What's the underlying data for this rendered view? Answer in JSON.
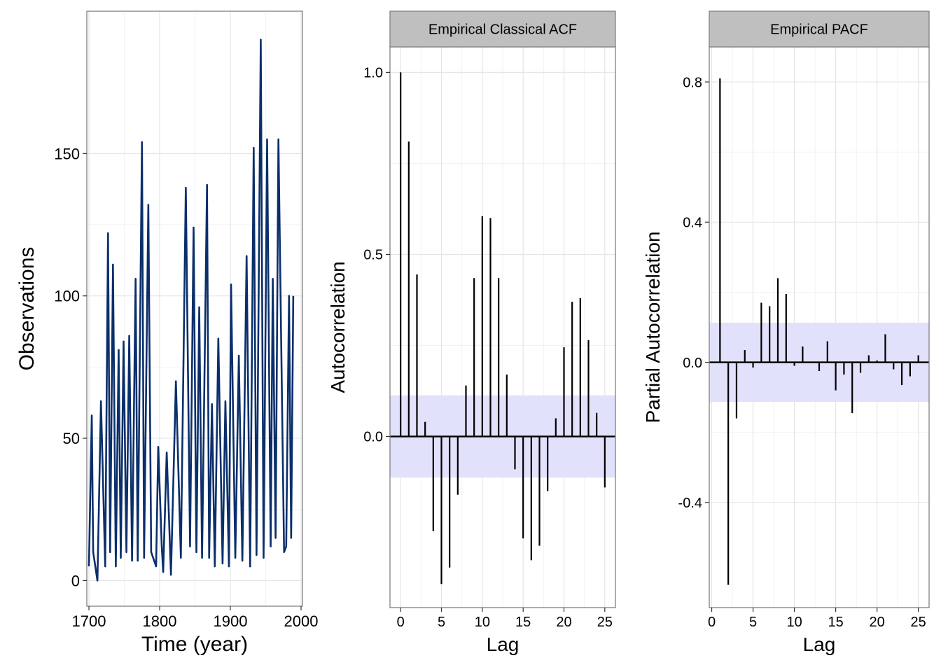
{
  "chart_data": [
    {
      "type": "line",
      "xlabel": "Time (year)",
      "ylabel": "Observations",
      "xlim": [
        1697,
        2002
      ],
      "ylim": [
        -9,
        200
      ],
      "xticks": [
        1700,
        1800,
        1900,
        2000
      ],
      "xtick_labels": [
        "1700",
        "1800",
        "1900",
        "2000"
      ],
      "yticks": [
        0,
        50,
        100,
        150
      ],
      "ytick_labels": [
        "0",
        "50",
        "100",
        "150"
      ],
      "grid": true,
      "line_color": "#0b2f6b",
      "x": [
        1700,
        1704,
        1706,
        1712,
        1717,
        1723,
        1727,
        1730,
        1734,
        1738,
        1742,
        1745,
        1749,
        1753,
        1757,
        1761,
        1766,
        1769,
        1775,
        1778,
        1784,
        1788,
        1795,
        1798,
        1803,
        1805,
        1810,
        1816,
        1823,
        1830,
        1837,
        1843,
        1848,
        1852,
        1856,
        1860,
        1867,
        1870,
        1874,
        1878,
        1883,
        1889,
        1893,
        1898,
        1901,
        1907,
        1912,
        1917,
        1923,
        1928,
        1933,
        1937,
        1943,
        1947,
        1952,
        1957,
        1960,
        1964,
        1968,
        1976,
        1979,
        1983,
        1986,
        1989
      ],
      "values": [
        5,
        58,
        10,
        0,
        63,
        5,
        122,
        10,
        111,
        5,
        81,
        8,
        84,
        10,
        86,
        7,
        106,
        7,
        154,
        8,
        132,
        10,
        5,
        47,
        12,
        3,
        45,
        2,
        70,
        8,
        138,
        12,
        124,
        10,
        96,
        8,
        139,
        8,
        62,
        5,
        85,
        6,
        63,
        5,
        104,
        8,
        79,
        7,
        114,
        5,
        152,
        9,
        190,
        8,
        155,
        12,
        106,
        15,
        155,
        10,
        12,
        100,
        15,
        100
      ]
    },
    {
      "type": "bar",
      "title": "Empirical Classical ACF",
      "xlabel": "Lag",
      "ylabel": "Autocorrelation",
      "xlim": [
        -1.3,
        26.3
      ],
      "ylim": [
        -0.47,
        1.07
      ],
      "xticks": [
        0,
        5,
        10,
        15,
        20,
        25
      ],
      "xtick_labels": [
        "0",
        "5",
        "10",
        "15",
        "20",
        "25"
      ],
      "yticks": [
        0.0,
        0.5,
        1.0
      ],
      "ytick_labels": [
        "0.0",
        "0.5",
        "1.0"
      ],
      "confidence_band": [
        -0.113,
        0.113
      ],
      "band_color": "#e1e1fb",
      "grid": true,
      "categories": [
        0,
        1,
        2,
        3,
        4,
        5,
        6,
        7,
        8,
        9,
        10,
        11,
        12,
        13,
        14,
        15,
        16,
        17,
        18,
        19,
        20,
        21,
        22,
        23,
        24,
        25
      ],
      "values": [
        1.0,
        0.81,
        0.445,
        0.04,
        -0.26,
        -0.405,
        -0.36,
        -0.16,
        0.14,
        0.435,
        0.605,
        0.6,
        0.435,
        0.17,
        -0.09,
        -0.28,
        -0.34,
        -0.3,
        -0.15,
        0.05,
        0.245,
        0.37,
        0.38,
        0.265,
        0.065,
        -0.14
      ]
    },
    {
      "type": "bar",
      "title": "Empirical PACF",
      "xlabel": "Lag",
      "ylabel": "Partial Autocorrelation",
      "xlim": [
        -0.3,
        26.3
      ],
      "ylim": [
        -0.7,
        0.9
      ],
      "xticks": [
        0,
        5,
        10,
        15,
        20,
        25
      ],
      "xtick_labels": [
        "0",
        "5",
        "10",
        "15",
        "20",
        "25"
      ],
      "yticks": [
        -0.4,
        0.0,
        0.4,
        0.8
      ],
      "ytick_labels": [
        "-0.4",
        "0.0",
        "0.4",
        "0.8"
      ],
      "confidence_band": [
        -0.113,
        0.113
      ],
      "band_color": "#e1e1fb",
      "grid": true,
      "categories": [
        1,
        2,
        3,
        4,
        5,
        6,
        7,
        8,
        9,
        10,
        11,
        12,
        13,
        14,
        15,
        16,
        17,
        18,
        19,
        20,
        21,
        22,
        23,
        24,
        25
      ],
      "values": [
        0.81,
        -0.635,
        -0.16,
        0.035,
        -0.015,
        0.17,
        0.16,
        0.24,
        0.195,
        -0.01,
        0.045,
        0.0,
        -0.025,
        0.06,
        -0.08,
        -0.035,
        -0.145,
        -0.03,
        0.02,
        0.005,
        0.08,
        -0.02,
        -0.065,
        -0.04,
        0.02
      ]
    }
  ]
}
